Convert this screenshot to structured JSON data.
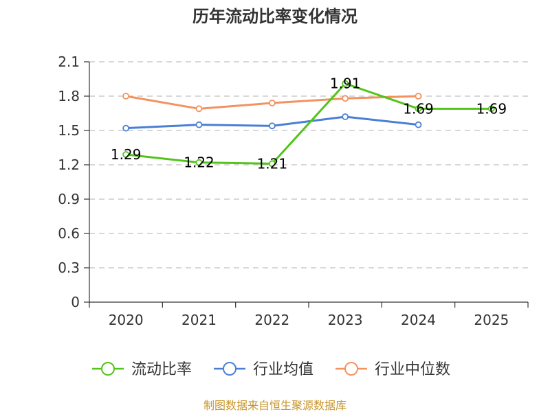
{
  "chart_data": {
    "type": "line",
    "title": "历年流动比率变化情况",
    "categories": [
      "2020",
      "2021",
      "2022",
      "2023",
      "2024",
      "2025"
    ],
    "ylim": [
      0,
      2.1
    ],
    "yticks": [
      "0",
      "0.3",
      "0.6",
      "0.9",
      "1.2",
      "1.5",
      "1.8",
      "2.1"
    ],
    "grid": true,
    "legend_position": "bottom",
    "series": [
      {
        "name": "流动比率",
        "color": "#52c41a",
        "values": [
          1.29,
          1.22,
          1.21,
          1.91,
          1.69,
          1.69
        ],
        "labels": [
          "1.29",
          "1.22",
          "1.21",
          "1.91",
          "1.69",
          "1.69"
        ],
        "show_labels": true
      },
      {
        "name": "行业均值",
        "color": "#4a7fd4",
        "values": [
          1.52,
          1.55,
          1.54,
          1.62,
          1.55,
          null
        ],
        "show_labels": false
      },
      {
        "name": "行业中位数",
        "color": "#f5915e",
        "values": [
          1.8,
          1.69,
          1.74,
          1.78,
          1.8,
          null
        ],
        "show_labels": false
      }
    ]
  },
  "source": "制图数据来自恒生聚源数据库"
}
